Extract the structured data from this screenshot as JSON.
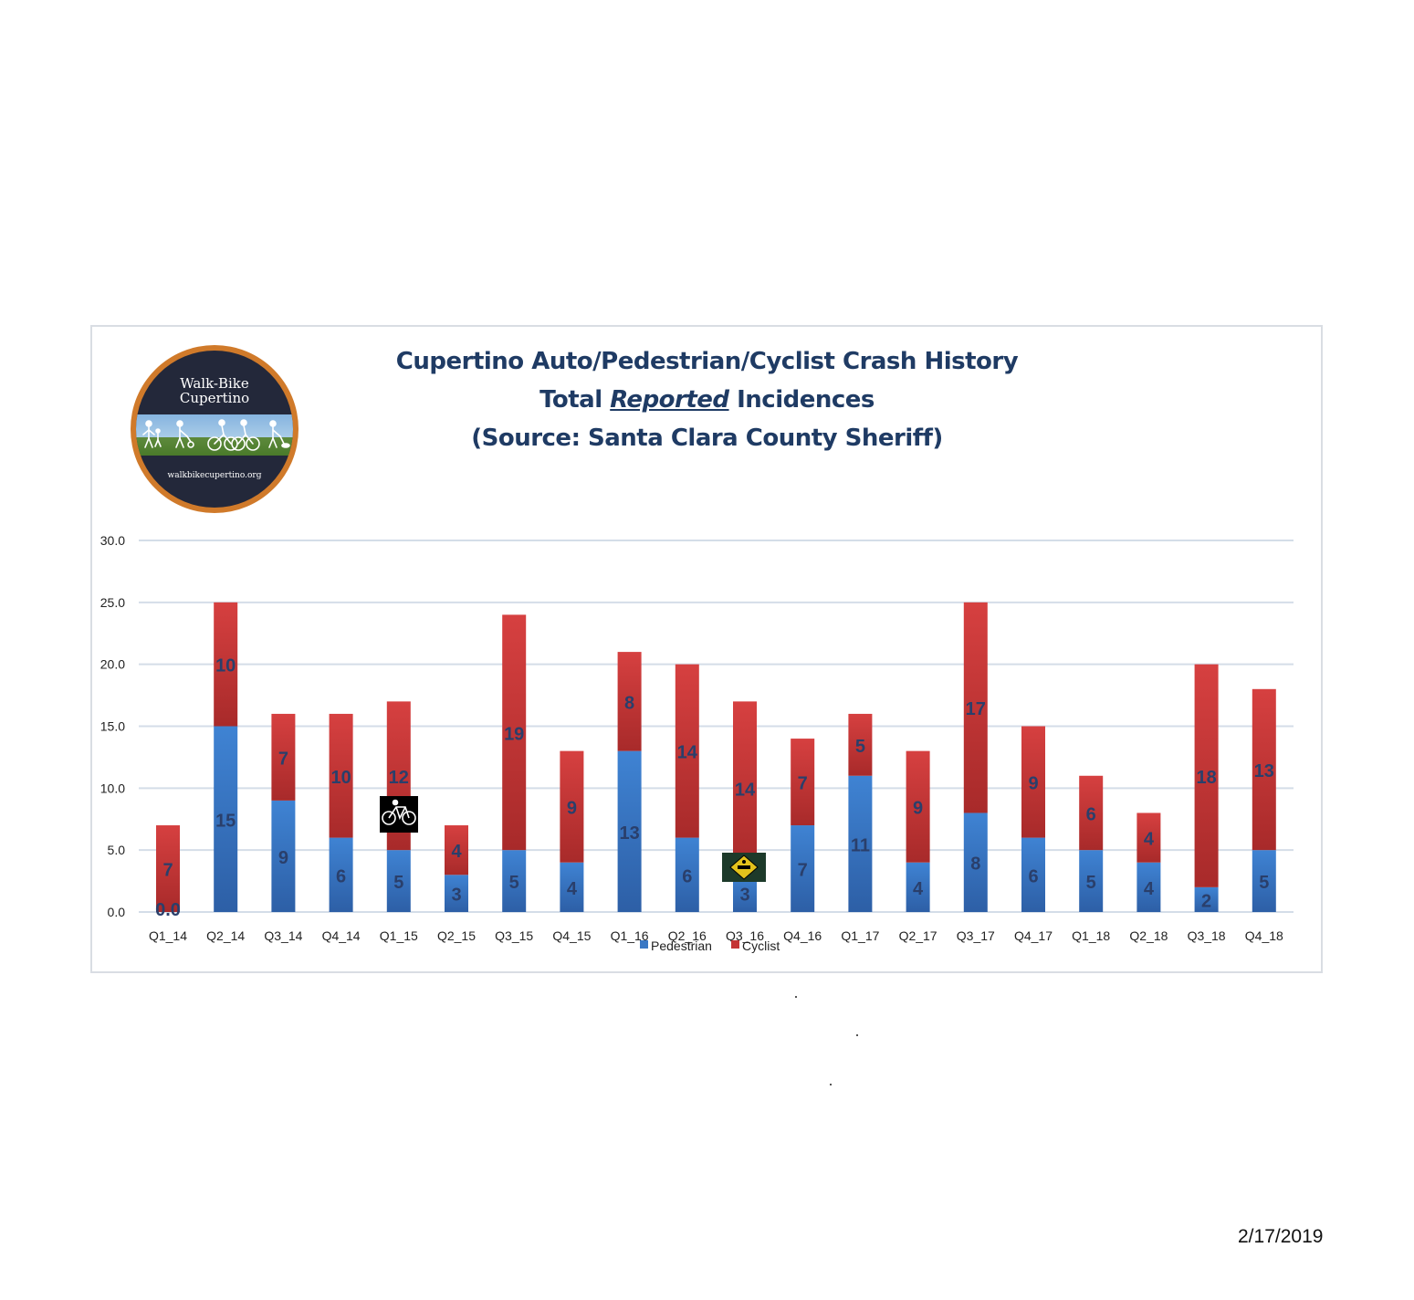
{
  "title_lines": {
    "line1": "Cupertino Auto/Pedestrian/Cyclist Crash History",
    "line2_pre": "Total ",
    "line2_emph": "Reported",
    "line2_post": " Incidences",
    "line3": "(Source: Santa Clara County Sheriff)"
  },
  "logo": {
    "name_line1": "Walk-Bike",
    "name_line2": "Cupertino",
    "url": "walkbikecupertino.org",
    "ring_color": "#d07a2a",
    "inner_color": "#23283a"
  },
  "footer_date": "2/17/2019",
  "chart_data": {
    "type": "bar",
    "stacked": true,
    "title": "Cupertino Auto/Pedestrian/Cyclist Crash History Total Reported Incidences (Source: Santa Clara County Sheriff)",
    "categories": [
      "Q1_14",
      "Q2_14",
      "Q3_14",
      "Q4_14",
      "Q1_15",
      "Q2_15",
      "Q3_15",
      "Q4_15",
      "Q1_16",
      "Q2_16",
      "Q3_16",
      "Q4_16",
      "Q1_17",
      "Q2_17",
      "Q3_17",
      "Q4_17",
      "Q1_18",
      "Q2_18",
      "Q3_18",
      "Q4_18"
    ],
    "series": [
      {
        "name": "Pedestrian",
        "color": "#3a78c4",
        "values": [
          0,
          15,
          9,
          6,
          5,
          3,
          5,
          4,
          13,
          6,
          3,
          7,
          11,
          4,
          8,
          6,
          5,
          4,
          2,
          5
        ],
        "labels": [
          "0.0",
          "15",
          "9",
          "6",
          "5",
          "3",
          "5",
          "4",
          "13",
          "6",
          "3",
          "7",
          "11",
          "4",
          "8",
          "6",
          "5",
          "4",
          "2",
          "5"
        ]
      },
      {
        "name": "Cyclist",
        "color": "#c43434",
        "values": [
          7,
          10,
          7,
          10,
          12,
          4,
          19,
          9,
          8,
          14,
          14,
          7,
          5,
          9,
          17,
          9,
          6,
          4,
          18,
          13
        ],
        "labels": [
          "7",
          "10",
          "7",
          "10",
          "12",
          "4",
          "19",
          "9",
          "8",
          "14",
          "14",
          "7",
          "5",
          "9",
          "17",
          "9",
          "6",
          "4",
          "18",
          "13"
        ]
      }
    ],
    "yticks": [
      "0.0",
      "5.0",
      "10.0",
      "15.0",
      "20.0",
      "25.0",
      "30.0"
    ],
    "ylim": [
      0,
      30
    ],
    "grid": true,
    "legend_position": "bottom"
  },
  "icons": {
    "cyclist_icon": "bicycle-icon",
    "sign_icon": "road-sign-icon"
  }
}
